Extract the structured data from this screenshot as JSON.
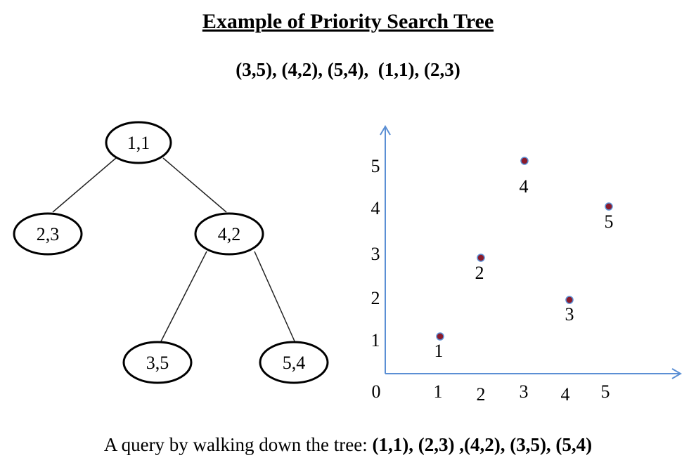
{
  "title": "Example of Priority Search Tree",
  "points_line": "(3,5), (4,2), (5,4),  (1,1), (2,3)",
  "tree": {
    "nodes": [
      {
        "id": "root",
        "label": "1,1"
      },
      {
        "id": "left",
        "label": "2,3"
      },
      {
        "id": "right",
        "label": "4,2"
      },
      {
        "id": "right-left",
        "label": "3,5"
      },
      {
        "id": "right-right",
        "label": "5,4"
      }
    ],
    "edges": [
      [
        "root",
        "left"
      ],
      [
        "root",
        "right"
      ],
      [
        "right",
        "right-left"
      ],
      [
        "right",
        "right-right"
      ]
    ]
  },
  "plot": {
    "origin_label": "0",
    "x_ticks": [
      "1",
      "2",
      "3",
      "4",
      "5"
    ],
    "y_ticks": [
      "1",
      "2",
      "3",
      "4",
      "5"
    ],
    "axis_color": "#5b8fd4",
    "point_color": "#8b1a2b",
    "points": [
      {
        "x": 1,
        "y": 1,
        "label": "1"
      },
      {
        "x": 2,
        "y": 3,
        "label": "2"
      },
      {
        "x": 4,
        "y": 2,
        "label": "3"
      },
      {
        "x": 3,
        "y": 5,
        "label": "4"
      },
      {
        "x": 5,
        "y": 4,
        "label": "5"
      }
    ]
  },
  "query": {
    "prefix": "A query by walking down the tree: ",
    "sequence": "(1,1), (2,3) ,(4,2), (3,5), (5,4)"
  }
}
